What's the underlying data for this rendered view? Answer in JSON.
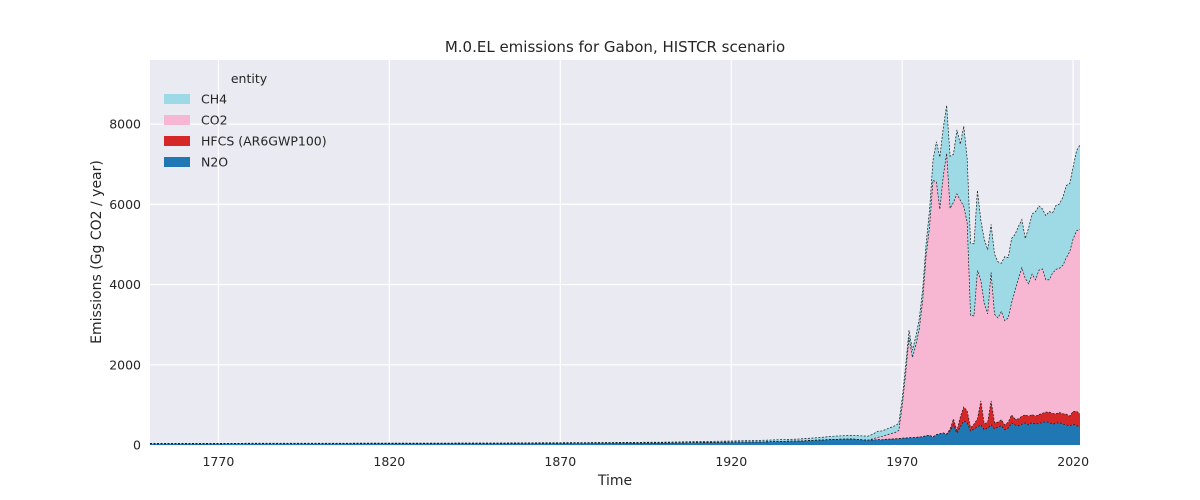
{
  "chart_data": {
    "type": "area",
    "stacked": true,
    "title": "M.0.EL emissions for Gabon, HISTCR scenario",
    "xlabel": "Time",
    "ylabel": "Emissions (Gg CO2 / year)",
    "xlim": [
      1750,
      2022
    ],
    "ylim": [
      0,
      9600
    ],
    "xticks": [
      1770,
      1820,
      1870,
      1920,
      1970,
      2020
    ],
    "yticks": [
      0,
      2000,
      4000,
      6000,
      8000
    ],
    "grid": true,
    "legend": {
      "title": "entity",
      "placement": "top-left"
    },
    "background": "#eaeaf2",
    "x": [
      1750,
      1800,
      1850,
      1900,
      1920,
      1930,
      1940,
      1945,
      1950,
      1955,
      1960,
      1961,
      1962,
      1963,
      1964,
      1965,
      1966,
      1967,
      1968,
      1969,
      1970,
      1971,
      1972,
      1973,
      1974,
      1975,
      1976,
      1977,
      1978,
      1979,
      1980,
      1981,
      1982,
      1983,
      1984,
      1985,
      1986,
      1987,
      1988,
      1989,
      1990,
      1991,
      1992,
      1993,
      1994,
      1995,
      1996,
      1997,
      1998,
      1999,
      2000,
      2001,
      2002,
      2003,
      2004,
      2005,
      2006,
      2007,
      2008,
      2009,
      2010,
      2011,
      2012,
      2013,
      2014,
      2015,
      2016,
      2017,
      2018,
      2019,
      2020,
      2021,
      2022
    ],
    "series": [
      {
        "name": "N2O",
        "color": "#1f77b4",
        "values": [
          30,
          35,
          40,
          50,
          70,
          80,
          100,
          120,
          140,
          150,
          120,
          125,
          130,
          135,
          130,
          140,
          145,
          150,
          155,
          160,
          170,
          175,
          180,
          185,
          190,
          200,
          210,
          230,
          240,
          200,
          260,
          280,
          300,
          270,
          350,
          500,
          300,
          450,
          600,
          550,
          350,
          400,
          450,
          500,
          380,
          420,
          500,
          400,
          450,
          480,
          380,
          420,
          550,
          500,
          480,
          520,
          550,
          500,
          560,
          520,
          540,
          560,
          580,
          560,
          520,
          540,
          560,
          520,
          500,
          480,
          520,
          480,
          450
        ]
      },
      {
        "name": "HFCS (AR6GWP100)",
        "color": "#d62728",
        "values": [
          0,
          0,
          0,
          0,
          0,
          0,
          0,
          0,
          0,
          0,
          0,
          0,
          0,
          0,
          0,
          0,
          0,
          0,
          0,
          0,
          0,
          0,
          0,
          0,
          0,
          0,
          0,
          0,
          0,
          0,
          0,
          0,
          0,
          0,
          50,
          150,
          60,
          250,
          350,
          300,
          80,
          120,
          200,
          600,
          150,
          150,
          600,
          160,
          120,
          150,
          120,
          150,
          200,
          150,
          170,
          200,
          200,
          220,
          200,
          200,
          220,
          230,
          240,
          260,
          270,
          240,
          250,
          260,
          270,
          240,
          320,
          360,
          330
        ]
      },
      {
        "name": "CO2",
        "color": "#f7b6d2",
        "values": [
          0,
          0,
          0,
          0,
          0,
          0,
          0,
          0,
          0,
          0,
          0,
          20,
          40,
          60,
          80,
          100,
          120,
          140,
          160,
          200,
          800,
          1600,
          2500,
          2000,
          2300,
          2700,
          3400,
          4500,
          5200,
          6400,
          6300,
          5600,
          6400,
          7000,
          5500,
          5400,
          5900,
          5400,
          5000,
          4700,
          2800,
          2700,
          3700,
          3000,
          3000,
          2700,
          3200,
          2700,
          2600,
          2700,
          2600,
          2600,
          2800,
          3200,
          3500,
          3700,
          3400,
          3300,
          3500,
          3400,
          3600,
          3600,
          3300,
          3300,
          3500,
          3600,
          3600,
          3700,
          3900,
          4100,
          4300,
          4500,
          4600
        ]
      },
      {
        "name": "CH4",
        "color": "#9edae5",
        "values": [
          10,
          10,
          10,
          20,
          30,
          40,
          50,
          60,
          80,
          90,
          100,
          110,
          130,
          150,
          140,
          140,
          150,
          160,
          170,
          180,
          200,
          200,
          180,
          180,
          220,
          250,
          280,
          300,
          420,
          500,
          1000,
          1300,
          1200,
          1200,
          1300,
          1200,
          1600,
          1400,
          2000,
          1600,
          1800,
          1800,
          2000,
          1500,
          1600,
          1600,
          1200,
          1500,
          1400,
          1200,
          1600,
          1500,
          1600,
          1400,
          1300,
          1200,
          1000,
          1400,
          1500,
          1700,
          1600,
          1500,
          1600,
          1700,
          1500,
          1600,
          1600,
          1700,
          1800,
          1700,
          1800,
          2000,
          2100
        ]
      }
    ]
  }
}
